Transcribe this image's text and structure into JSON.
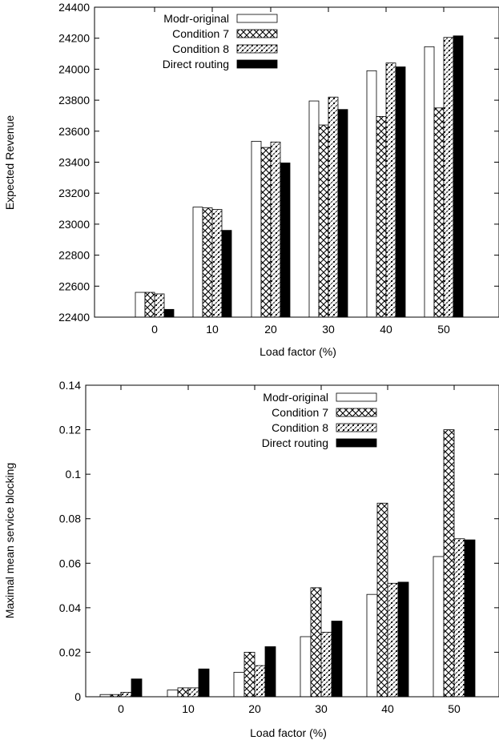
{
  "chart_data": [
    {
      "type": "bar",
      "categories": [
        "0",
        "10",
        "20",
        "30",
        "40",
        "50"
      ],
      "xlabel": "Load factor (%)",
      "ylabel": "Expected Revenue",
      "ylim": [
        22400,
        24400
      ],
      "yticks": [
        "22400",
        "22600",
        "22800",
        "23000",
        "23200",
        "23400",
        "23600",
        "23800",
        "24000",
        "24200",
        "24400"
      ],
      "legend_position": "top-left",
      "grid": false,
      "series": [
        {
          "name": "Modr-original",
          "pattern": "white",
          "values": [
            22560,
            23110,
            23535,
            23795,
            23990,
            24145
          ]
        },
        {
          "name": "Condition 7",
          "pattern": "cross-hatch",
          "values": [
            22560,
            23105,
            23495,
            23640,
            23695,
            23750
          ]
        },
        {
          "name": "Condition 8",
          "pattern": "dotted-hatch",
          "values": [
            22550,
            23095,
            23530,
            23820,
            24040,
            24205
          ]
        },
        {
          "name": "Direct routing",
          "pattern": "black",
          "values": [
            22450,
            22960,
            23395,
            23740,
            24015,
            24215
          ]
        }
      ]
    },
    {
      "type": "bar",
      "categories": [
        "0",
        "10",
        "20",
        "30",
        "40",
        "50"
      ],
      "xlabel": "Load factor (%)",
      "ylabel": "Maximal mean service blocking",
      "ylim": [
        0,
        0.14
      ],
      "yticks": [
        "0",
        "0.02",
        "0.04",
        "0.06",
        "0.08",
        "0.1",
        "0.12",
        "0.14"
      ],
      "legend_position": "top-center",
      "grid": false,
      "series": [
        {
          "name": "Modr-original",
          "pattern": "white",
          "values": [
            0.001,
            0.003,
            0.011,
            0.027,
            0.046,
            0.063
          ]
        },
        {
          "name": "Condition 7",
          "pattern": "cross-hatch",
          "values": [
            0.001,
            0.004,
            0.02,
            0.049,
            0.087,
            0.12
          ]
        },
        {
          "name": "Condition 8",
          "pattern": "dotted-hatch",
          "values": [
            0.002,
            0.004,
            0.014,
            0.029,
            0.051,
            0.071
          ]
        },
        {
          "name": "Direct routing",
          "pattern": "black",
          "values": [
            0.008,
            0.0125,
            0.0225,
            0.034,
            0.0515,
            0.0705
          ]
        }
      ]
    }
  ]
}
